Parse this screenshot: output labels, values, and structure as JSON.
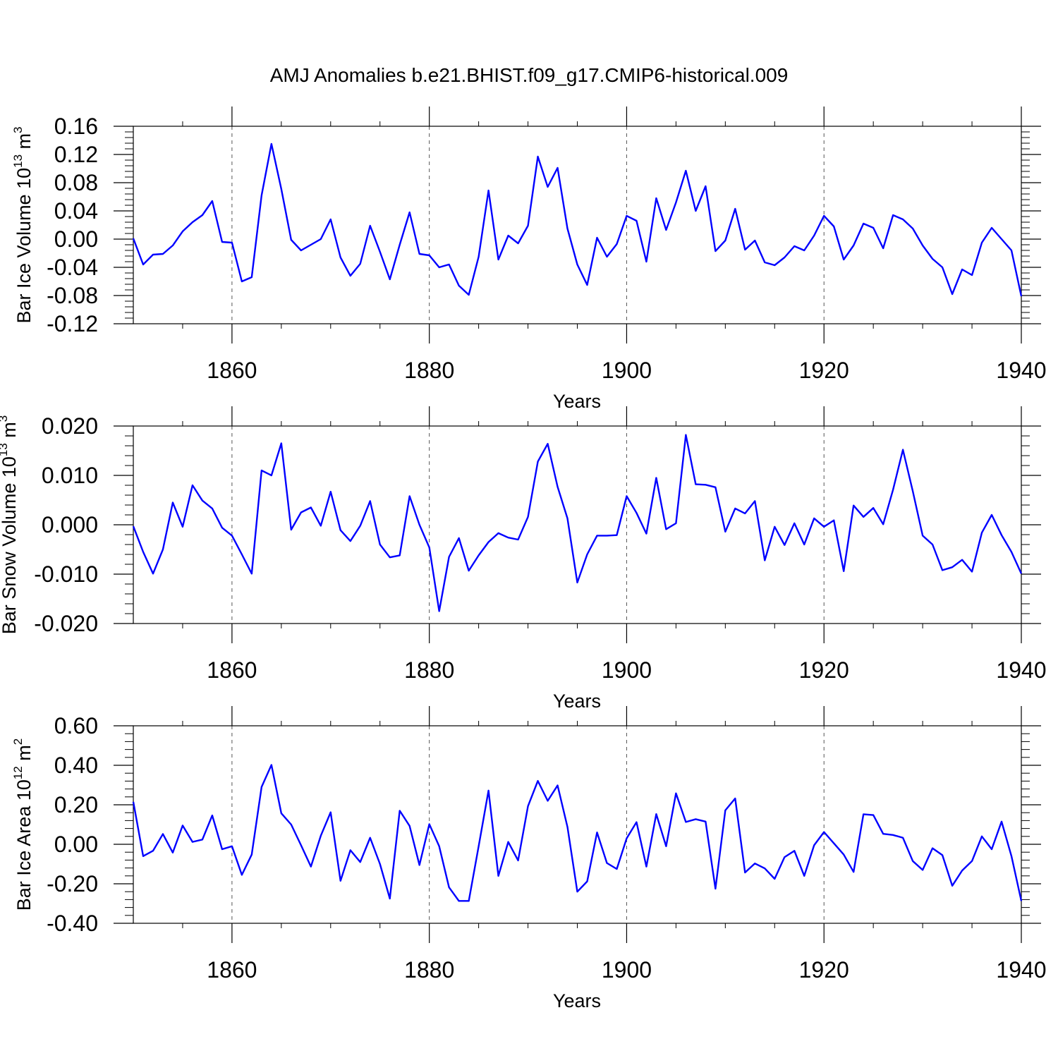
{
  "title": "AMJ Anomalies b.e21.BHIST.f09_g17.CMIP6-historical.009",
  "line_color": "#0000ff",
  "chart_data": [
    {
      "type": "line",
      "xlabel": "Years",
      "ylabel": "Bar Ice Volume 10",
      "ylabel_exp": "13",
      "ylabel_unit": " m",
      "ylabel_unit_exp": "3",
      "xlim": [
        1850,
        1940
      ],
      "ylim": [
        -0.12,
        0.16
      ],
      "xticks": [
        1860,
        1880,
        1900,
        1920,
        1940
      ],
      "yticks": [
        -0.12,
        -0.08,
        -0.04,
        0.0,
        0.04,
        0.08,
        0.12,
        0.16
      ],
      "ytick_labels": [
        "-0.12",
        "-0.08",
        "-0.04",
        "0.00",
        "0.04",
        "0.08",
        "0.12",
        "0.16"
      ],
      "xgrid": "dashed-vertical",
      "x_start": 1850,
      "values": [
        0.001,
        -0.036,
        -0.022,
        -0.021,
        -0.009,
        0.011,
        0.024,
        0.034,
        0.054,
        -0.004,
        -0.005,
        -0.06,
        -0.054,
        0.062,
        0.135,
        0.071,
        -0.001,
        -0.016,
        -0.008,
        0.0,
        0.028,
        -0.026,
        -0.052,
        -0.035,
        0.019,
        -0.018,
        -0.057,
        -0.008,
        0.038,
        -0.021,
        -0.023,
        -0.04,
        -0.036,
        -0.066,
        -0.079,
        -0.025,
        0.069,
        -0.029,
        0.005,
        -0.006,
        0.019,
        0.117,
        0.074,
        0.101,
        0.015,
        -0.036,
        -0.065,
        0.002,
        -0.025,
        -0.007,
        0.033,
        0.026,
        -0.032,
        0.058,
        0.013,
        0.052,
        0.097,
        0.04,
        0.075,
        -0.017,
        -0.002,
        0.043,
        -0.015,
        -0.002,
        -0.033,
        -0.037,
        -0.026,
        -0.01,
        -0.016,
        0.005,
        0.033,
        0.018,
        -0.029,
        -0.009,
        0.022,
        0.016,
        -0.013,
        0.034,
        0.028,
        0.015,
        -0.009,
        -0.028,
        -0.04,
        -0.078,
        -0.043,
        -0.051,
        -0.005,
        0.016,
        0.0,
        -0.016,
        -0.081
      ]
    },
    {
      "type": "line",
      "xlabel": "Years",
      "ylabel": "Bar Snow Volume 10",
      "ylabel_exp": "13",
      "ylabel_unit": " m",
      "ylabel_unit_exp": "3",
      "xlim": [
        1850,
        1940
      ],
      "ylim": [
        -0.02,
        0.02
      ],
      "xticks": [
        1860,
        1880,
        1900,
        1920,
        1940
      ],
      "yticks": [
        -0.02,
        -0.01,
        0.0,
        0.01,
        0.02
      ],
      "ytick_labels": [
        "-0.020",
        "-0.010",
        "0.000",
        "0.010",
        "0.020"
      ],
      "xgrid": "dashed-vertical",
      "x_start": 1850,
      "values": [
        -0.0003,
        -0.0055,
        -0.0099,
        -0.005,
        0.0045,
        -0.0004,
        0.008,
        0.0049,
        0.0033,
        -0.0006,
        -0.0022,
        -0.006,
        -0.0099,
        0.011,
        0.01,
        0.0165,
        -0.001,
        0.0025,
        0.0035,
        -0.0002,
        0.0067,
        -0.0011,
        -0.0033,
        -0.0002,
        0.0048,
        -0.004,
        -0.0066,
        -0.0062,
        0.0058,
        0.0,
        -0.0046,
        -0.0175,
        -0.0065,
        -0.0027,
        -0.0093,
        -0.0062,
        -0.0035,
        -0.0017,
        -0.0026,
        -0.003,
        0.0016,
        0.0128,
        0.0164,
        0.0077,
        0.0013,
        -0.0117,
        -0.006,
        -0.0022,
        -0.0022,
        -0.0021,
        0.0058,
        0.0024,
        -0.0018,
        0.0095,
        -0.0009,
        0.0003,
        0.0182,
        0.0082,
        0.0081,
        0.0076,
        -0.0014,
        0.0033,
        0.0023,
        0.0048,
        -0.0072,
        -0.0004,
        -0.0041,
        0.0003,
        -0.004,
        0.0013,
        -0.0004,
        0.0009,
        -0.0094,
        0.0039,
        0.0016,
        0.0034,
        0.0001,
        0.0071,
        0.0152,
        0.0068,
        -0.0022,
        -0.004,
        -0.0092,
        -0.0086,
        -0.0071,
        -0.0095,
        -0.0016,
        0.002,
        -0.0021,
        -0.0055,
        -0.0099
      ]
    },
    {
      "type": "line",
      "xlabel": "Years",
      "ylabel": "Bar Ice Area 10",
      "ylabel_exp": "12",
      "ylabel_unit": " m",
      "ylabel_unit_exp": "2",
      "xlim": [
        1850,
        1940
      ],
      "ylim": [
        -0.4,
        0.6
      ],
      "xticks": [
        1860,
        1880,
        1900,
        1920,
        1940
      ],
      "yticks": [
        -0.4,
        -0.2,
        0.0,
        0.2,
        0.4,
        0.6
      ],
      "ytick_labels": [
        "-0.40",
        "-0.20",
        "0.00",
        "0.20",
        "0.40",
        "0.60"
      ],
      "xgrid": "dashed-vertical",
      "x_start": 1850,
      "values": [
        0.215,
        -0.06,
        -0.033,
        0.052,
        -0.042,
        0.095,
        0.012,
        0.024,
        0.146,
        -0.025,
        -0.01,
        -0.155,
        -0.052,
        0.29,
        0.402,
        0.157,
        0.1,
        -0.005,
        -0.113,
        0.043,
        0.162,
        -0.185,
        -0.03,
        -0.09,
        0.033,
        -0.1,
        -0.275,
        0.17,
        0.093,
        -0.105,
        0.102,
        -0.01,
        -0.218,
        -0.287,
        -0.287,
        -0.01,
        0.272,
        -0.16,
        0.012,
        -0.082,
        0.193,
        0.321,
        0.22,
        0.298,
        0.088,
        -0.24,
        -0.188,
        0.06,
        -0.095,
        -0.125,
        0.03,
        0.112,
        -0.113,
        0.153,
        -0.01,
        0.258,
        0.113,
        0.127,
        0.115,
        -0.225,
        0.172,
        0.232,
        -0.143,
        -0.097,
        -0.122,
        -0.175,
        -0.065,
        -0.033,
        -0.16,
        -0.005,
        0.062,
        0.005,
        -0.052,
        -0.14,
        0.152,
        0.148,
        0.053,
        0.047,
        0.033,
        -0.085,
        -0.13,
        -0.02,
        -0.055,
        -0.21,
        -0.133,
        -0.085,
        0.04,
        -0.025,
        0.115,
        -0.06,
        -0.287
      ]
    }
  ]
}
